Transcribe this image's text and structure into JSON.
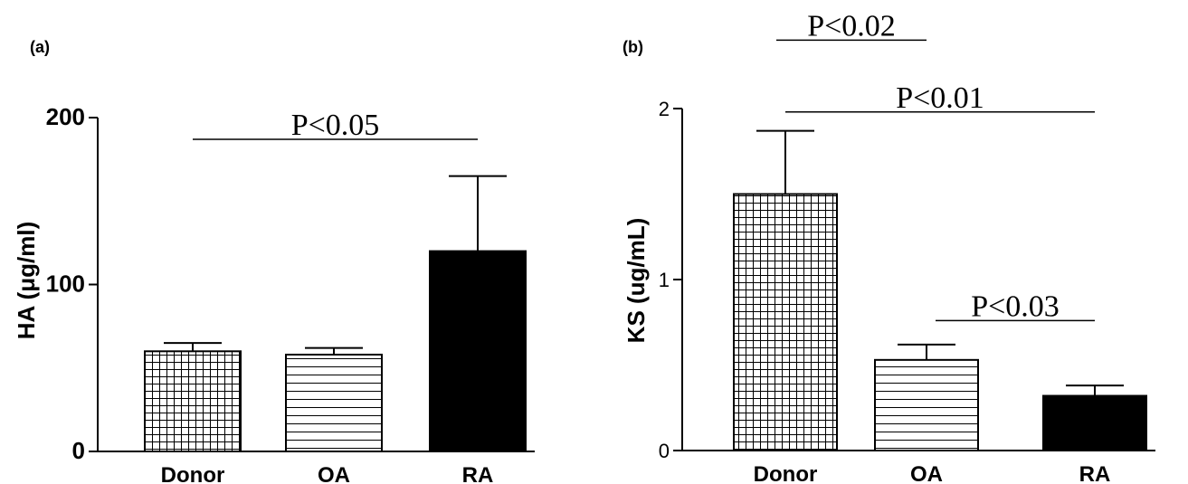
{
  "chart_data": [
    {
      "panel": "(a)",
      "type": "bar",
      "ylabel": "HA (μg/ml)",
      "ylim": [
        0,
        200
      ],
      "yticks": [
        "0",
        "100",
        "200"
      ],
      "categories": [
        "Donor",
        "OA",
        "RA"
      ],
      "values": [
        60,
        58,
        120
      ],
      "errors": [
        5,
        4,
        45
      ],
      "fills": [
        "grid",
        "horizontal",
        "solid"
      ],
      "comparisons": [
        {
          "from": "Donor",
          "to": "RA",
          "label": "P<0.05",
          "y": 187
        }
      ]
    },
    {
      "panel": "(b)",
      "type": "bar",
      "ylabel": "KS (ug/mL)",
      "ylim": [
        0,
        2
      ],
      "yticks": [
        "0",
        "1",
        "2"
      ],
      "categories": [
        "Donor",
        "OA",
        "RA"
      ],
      "values": [
        1.5,
        0.53,
        0.32
      ],
      "errors": [
        0.37,
        0.09,
        0.06
      ],
      "fills": [
        "grid",
        "horizontal",
        "solid"
      ],
      "comparisons": [
        {
          "from": "Donor",
          "to": "OA",
          "label": "P<0.02",
          "y": 2.4
        },
        {
          "from": "Donor",
          "to": "RA",
          "label": "P<0.01",
          "y": 1.98
        },
        {
          "from": "OA",
          "to": "RA",
          "label": "P<0.03",
          "y": 0.76
        }
      ]
    }
  ]
}
